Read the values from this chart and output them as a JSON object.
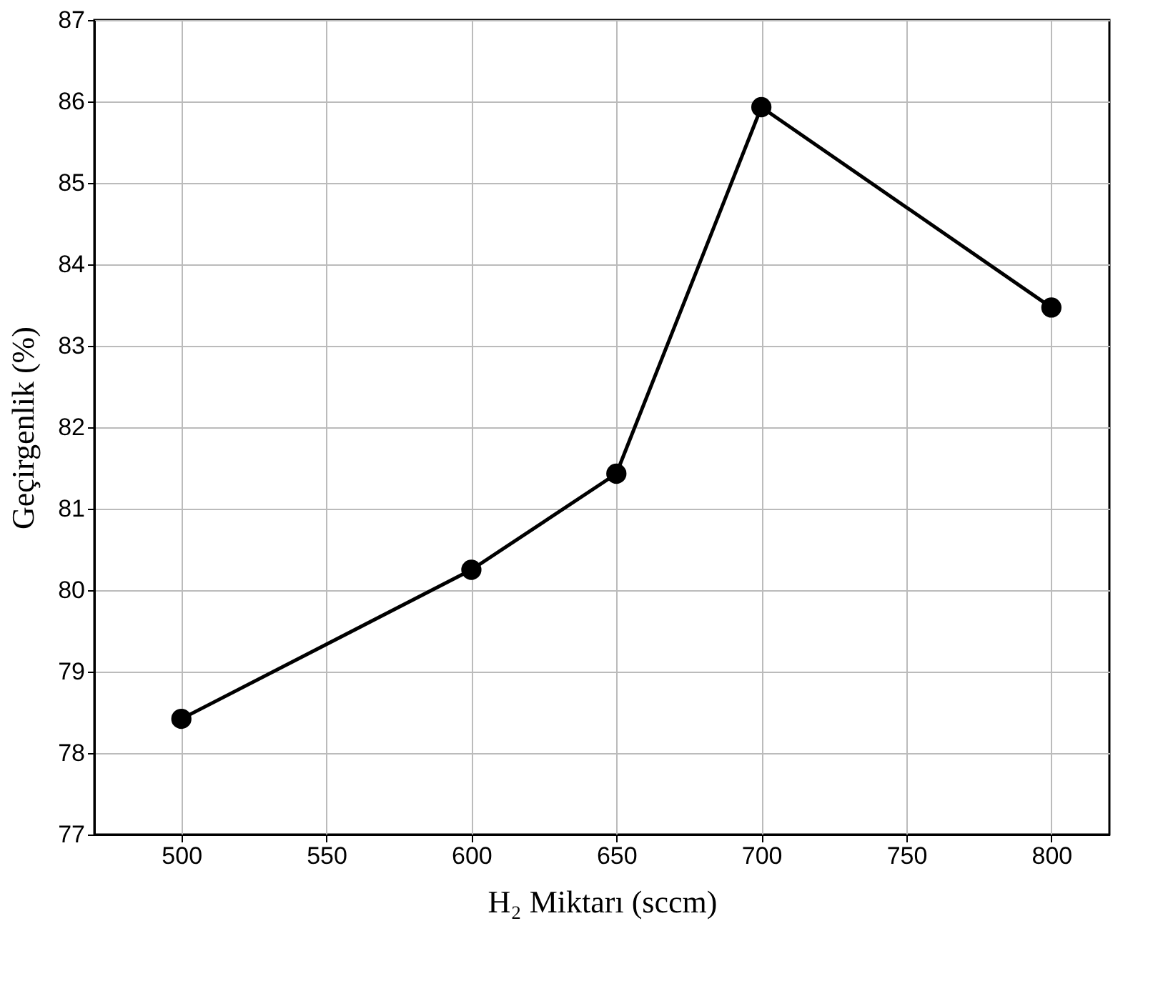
{
  "chart_data": {
    "type": "line",
    "xlabel": "H₂ Miktarı (sccm)",
    "ylabel": "Geçirgenlik (%)",
    "x": [
      500,
      600,
      650,
      700,
      800
    ],
    "series": [
      {
        "color": "#000000",
        "values": [
          78.42,
          80.25,
          81.43,
          85.93,
          83.47
        ]
      }
    ],
    "xlim": [
      470,
      820
    ],
    "xticks": [
      500,
      550,
      600,
      650,
      700,
      750,
      800
    ],
    "ylim": [
      77,
      87
    ],
    "yticks": [
      77,
      78,
      79,
      80,
      81,
      82,
      83,
      84,
      85,
      86,
      87
    ],
    "grid": true,
    "marker": "circle",
    "line_style": "solid"
  }
}
